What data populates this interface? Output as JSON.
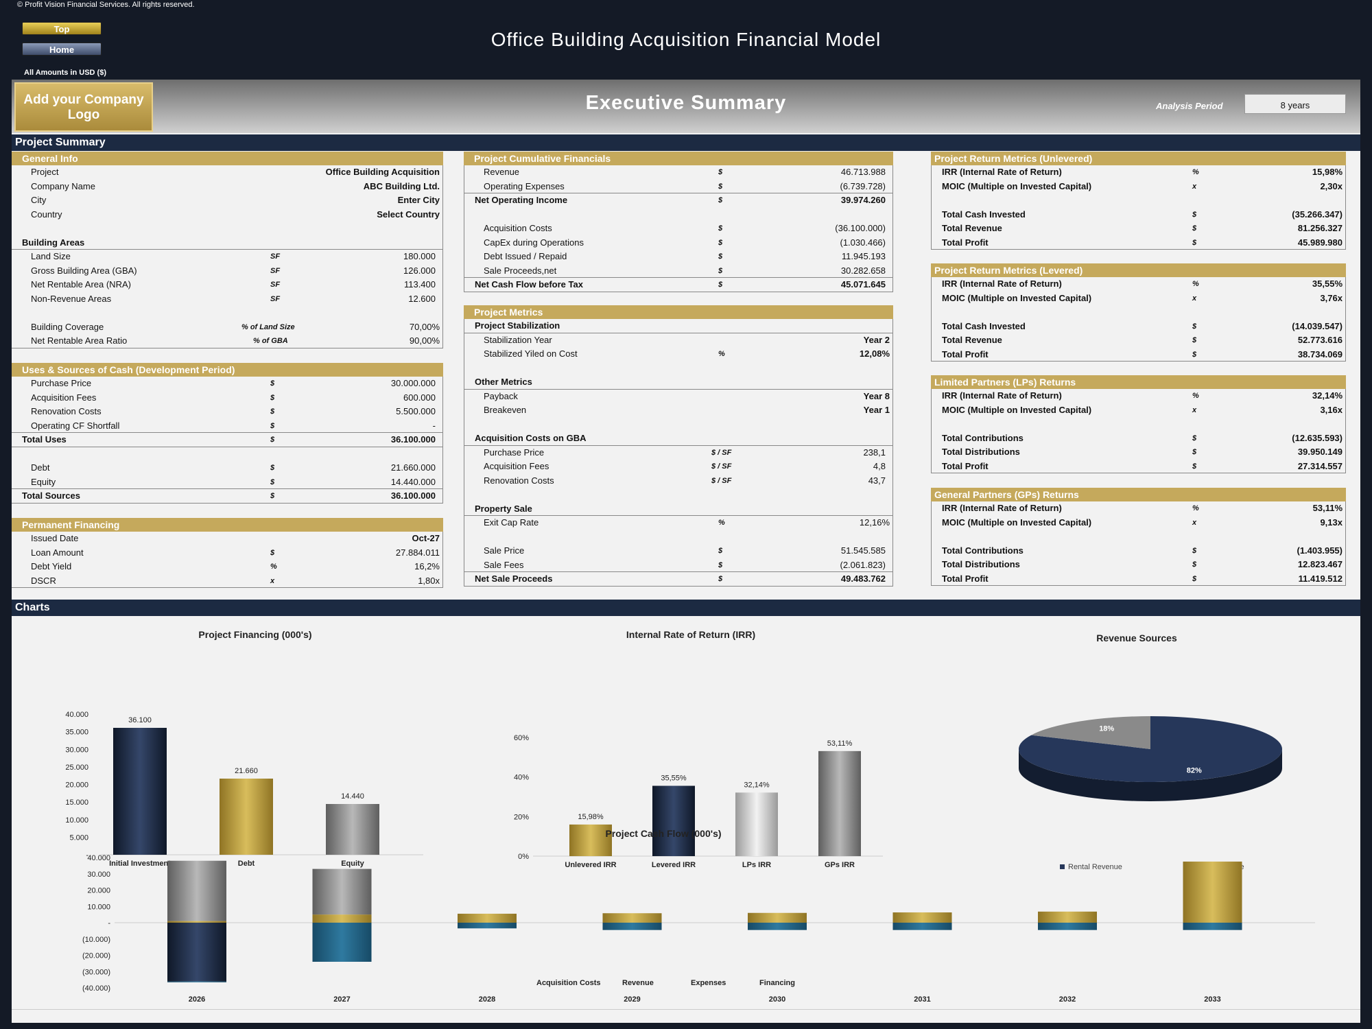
{
  "copyright": "© Profit Vision Financial Services. All rights reserved.",
  "nav": {
    "top": "Top",
    "home": "Home"
  },
  "title": "Office Building Acquisition Financial Model",
  "amounts_label": "All Amounts in  USD ($)",
  "logo_text": "Add your Company Logo",
  "exec_title": "Executive Summary",
  "analysis_period_label": "Analysis Period",
  "analysis_period_value": "8 years",
  "project_summary_label": "Project Summary",
  "charts_label": "Charts",
  "general_info": {
    "header": "General Info",
    "rows": [
      {
        "label": "Project",
        "value": "Office Building Acquisition"
      },
      {
        "label": "Company Name",
        "value": "ABC Building Ltd."
      },
      {
        "label": "City",
        "value": "Enter City"
      },
      {
        "label": "Country",
        "value": "Select Country"
      }
    ],
    "areas_header": "Building Areas",
    "areas": [
      {
        "label": "Land Size",
        "unit": "SF",
        "value": "180.000"
      },
      {
        "label": "Gross Building Area (GBA)",
        "unit": "SF",
        "value": "126.000"
      },
      {
        "label": "Net Rentable Area (NRA)",
        "unit": "SF",
        "value": "113.400"
      },
      {
        "label": "Non-Revenue Areas",
        "unit": "SF",
        "value": "12.600"
      }
    ],
    "ratios": [
      {
        "label": "Building Coverage",
        "unit": "% of Land Size",
        "value": "70,00%"
      },
      {
        "label": "Net Rentable Area Ratio",
        "unit": "% of GBA",
        "value": "90,00%"
      }
    ]
  },
  "uses_sources": {
    "header": "Uses & Sources of Cash (Development Period)",
    "uses": [
      {
        "label": "Purchase Price",
        "unit": "$",
        "value": "30.000.000"
      },
      {
        "label": "Acquisition Fees",
        "unit": "$",
        "value": "600.000"
      },
      {
        "label": "Renovation Costs",
        "unit": "$",
        "value": "5.500.000"
      },
      {
        "label": "Operating CF Shortfall",
        "unit": "$",
        "value": "-"
      }
    ],
    "total_uses": {
      "label": "Total Uses",
      "unit": "$",
      "value": "36.100.000"
    },
    "sources": [
      {
        "label": "Debt",
        "unit": "$",
        "value": "21.660.000"
      },
      {
        "label": "Equity",
        "unit": "$",
        "value": "14.440.000"
      }
    ],
    "total_sources": {
      "label": "Total Sources",
      "unit": "$",
      "value": "36.100.000"
    }
  },
  "permanent_financing": {
    "header": "Permanent Financing",
    "rows": [
      {
        "label": "Issued Date",
        "unit": "",
        "value": "Oct-27"
      },
      {
        "label": "Loan Amount",
        "unit": "$",
        "value": "27.884.011"
      },
      {
        "label": "Debt Yield",
        "unit": "%",
        "value": "16,2%"
      },
      {
        "label": "DSCR",
        "unit": "x",
        "value": "1,80x"
      }
    ]
  },
  "cumulative": {
    "header": "Project Cumulative Financials",
    "rows1": [
      {
        "label": "Revenue",
        "unit": "$",
        "value": "46.713.988"
      },
      {
        "label": "Operating Expenses",
        "unit": "$",
        "value": "(6.739.728)"
      }
    ],
    "noi": {
      "label": "Net Operating Income",
      "unit": "$",
      "value": "39.974.260"
    },
    "rows2": [
      {
        "label": "Acquisition Costs",
        "unit": "$",
        "value": "(36.100.000)"
      },
      {
        "label": "CapEx during Operations",
        "unit": "$",
        "value": "(1.030.466)"
      },
      {
        "label": "Debt Issued / Repaid",
        "unit": "$",
        "value": "11.945.193"
      },
      {
        "label": "Sale Proceeds,net",
        "unit": "$",
        "value": "30.282.658"
      }
    ],
    "ncf": {
      "label": "Net Cash Flow before Tax",
      "unit": "$",
      "value": "45.071.645"
    }
  },
  "metrics": {
    "header": "Project Metrics",
    "stab_header": "Project Stabilization",
    "stab": [
      {
        "label": "Stabilization Year",
        "unit": "",
        "value": "Year 2"
      },
      {
        "label": "Stabilized Yiled on Cost",
        "unit": "%",
        "value": "12,08%"
      }
    ],
    "other_header": "Other Metrics",
    "other": [
      {
        "label": "Payback",
        "unit": "",
        "value": "Year 8"
      },
      {
        "label": "Breakeven",
        "unit": "",
        "value": "Year 1"
      }
    ],
    "acq_header": "Acquisition Costs  on GBA",
    "acq": [
      {
        "label": "Purchase Price",
        "unit": "$ / SF",
        "value": "238,1"
      },
      {
        "label": "Acquisition Fees",
        "unit": "$ / SF",
        "value": "4,8"
      },
      {
        "label": "Renovation Costs",
        "unit": "$ / SF",
        "value": "43,7"
      }
    ],
    "sale_header": "Property Sale",
    "exit": {
      "label": "Exit Cap Rate",
      "unit": "%",
      "value": "12,16%"
    },
    "sale": [
      {
        "label": "Sale Price",
        "unit": "$",
        "value": "51.545.585"
      },
      {
        "label": "Sale Fees",
        "unit": "$",
        "value": "(2.061.823)"
      }
    ],
    "net": {
      "label": "Net Sale Proceeds",
      "unit": "$",
      "value": "49.483.762"
    }
  },
  "returns": [
    {
      "header": "Project Return Metrics (Unlevered)",
      "irr": {
        "label": "IRR (Internal Rate of Return)",
        "unit": "%",
        "value": "15,98%"
      },
      "moic": {
        "label": "MOIC (Multiple on Invested Capital)",
        "unit": "x",
        "value": "2,30x"
      },
      "rows": [
        {
          "label": "Total Cash Invested",
          "unit": "$",
          "value": "(35.266.347)"
        },
        {
          "label": "Total Revenue",
          "unit": "$",
          "value": "81.256.327"
        },
        {
          "label": "Total Profit",
          "unit": "$",
          "value": "45.989.980"
        }
      ]
    },
    {
      "header": "Project Return Metrics (Levered)",
      "irr": {
        "label": "IRR (Internal Rate of Return)",
        "unit": "%",
        "value": "35,55%"
      },
      "moic": {
        "label": "MOIC (Multiple on Invested Capital)",
        "unit": "x",
        "value": "3,76x"
      },
      "rows": [
        {
          "label": "Total Cash Invested",
          "unit": "$",
          "value": "(14.039.547)"
        },
        {
          "label": "Total Revenue",
          "unit": "$",
          "value": "52.773.616"
        },
        {
          "label": "Total Profit",
          "unit": "$",
          "value": "38.734.069"
        }
      ]
    },
    {
      "header": "Limited Partners (LPs) Returns",
      "irr": {
        "label": "IRR (Internal Rate of Return)",
        "unit": "%",
        "value": "32,14%"
      },
      "moic": {
        "label": "MOIC (Multiple on Invested Capital)",
        "unit": "x",
        "value": "3,16x"
      },
      "rows": [
        {
          "label": "Total Contributions",
          "unit": "$",
          "value": "(12.635.593)"
        },
        {
          "label": "Total Distributions",
          "unit": "$",
          "value": "39.950.149"
        },
        {
          "label": "Total Profit",
          "unit": "$",
          "value": "27.314.557"
        }
      ]
    },
    {
      "header": "General Partners (GPs) Returns",
      "irr": {
        "label": "IRR (Internal Rate of Return)",
        "unit": "%",
        "value": "53,11%"
      },
      "moic": {
        "label": "MOIC (Multiple on Invested Capital)",
        "unit": "x",
        "value": "9,13x"
      },
      "rows": [
        {
          "label": "Total Contributions",
          "unit": "$",
          "value": "(1.403.955)"
        },
        {
          "label": "Total Distributions",
          "unit": "$",
          "value": "12.823.467"
        },
        {
          "label": "Total Profit",
          "unit": "$",
          "value": "11.419.512"
        }
      ]
    }
  ],
  "chart_data": [
    {
      "type": "bar",
      "title": "Project Financing (000's)",
      "categories": [
        "Initial Investment",
        "Debt",
        "Equity"
      ],
      "values": [
        36100,
        21660,
        14440
      ],
      "value_labels": [
        "36.100",
        "21.660",
        "14.440"
      ],
      "yticks": [
        "40.000",
        "35.000",
        "30.000",
        "25.000",
        "20.000",
        "15.000",
        "10.000",
        "5.000",
        "-"
      ],
      "ylim": [
        0,
        40000
      ],
      "colors": [
        "#1c2a42",
        "#b89a3c",
        "#8a8a8a"
      ]
    },
    {
      "type": "bar",
      "title": "Internal Rate of Return (IRR)",
      "categories": [
        "Unlevered IRR",
        "Levered IRR",
        "LPs IRR",
        "GPs IRR"
      ],
      "values": [
        15.98,
        35.55,
        32.14,
        53.11
      ],
      "value_labels": [
        "15,98%",
        "35,55%",
        "32,14%",
        "53,11%"
      ],
      "yticks": [
        "60%",
        "40%",
        "20%",
        "0%"
      ],
      "ylim": [
        0,
        60
      ],
      "colors": [
        "#b89a3c",
        "#1c2a42",
        "#c8c8c8",
        "#8a8a8a"
      ]
    },
    {
      "type": "pie",
      "title": "Revenue Sources",
      "labels": [
        "Rental Revenue",
        "Other Revenue"
      ],
      "values": [
        82,
        18
      ],
      "value_labels": [
        "82%",
        "18%"
      ],
      "colors": [
        "#26375a",
        "#8a8a8a"
      ]
    },
    {
      "type": "bar",
      "title": "Project Cash Flow (000's)",
      "categories": [
        "2026",
        "2027",
        "2028",
        "2029",
        "2030",
        "2031",
        "2032",
        "2033"
      ],
      "series": [
        {
          "name": "Acquisition Costs",
          "color": "#1c2a42",
          "values": [
            -36100,
            0,
            0,
            0,
            0,
            0,
            0,
            0
          ]
        },
        {
          "name": "Revenue",
          "color": "#b89a3c",
          "values": [
            1000,
            5000,
            5500,
            5800,
            6000,
            6300,
            6800,
            37500
          ]
        },
        {
          "name": "Expenses",
          "color": "#1f5e7e",
          "values": [
            -500,
            -24000,
            -3500,
            -4500,
            -4500,
            -4500,
            -4500,
            -4500
          ]
        },
        {
          "name": "Financing",
          "color": "#8a8a8a",
          "values": [
            37000,
            28000,
            0,
            0,
            0,
            0,
            0,
            0
          ]
        }
      ],
      "yticks": [
        "40.000",
        "30.000",
        "20.000",
        "10.000",
        "-",
        "(10.000)",
        "(20.000)",
        "(30.000)",
        "(40.000)"
      ],
      "ylim": [
        -40000,
        40000
      ]
    }
  ]
}
